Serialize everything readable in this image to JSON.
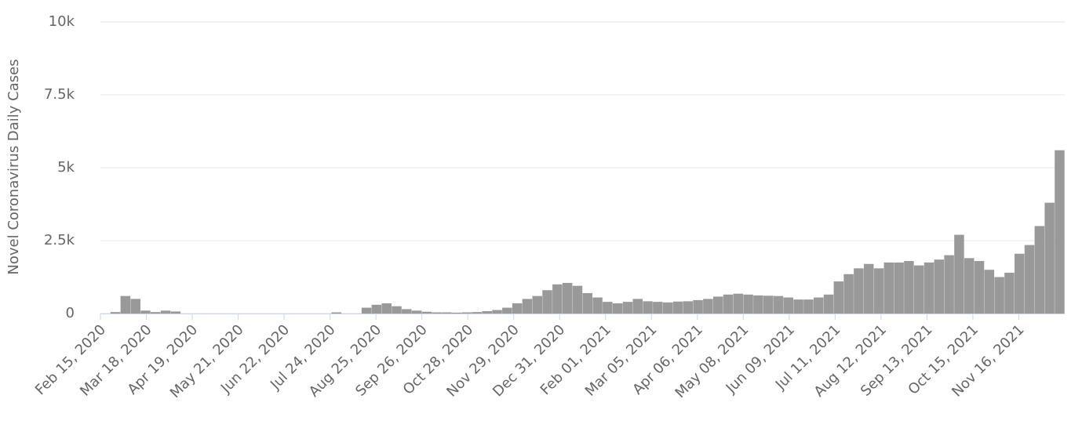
{
  "chart_data": {
    "type": "bar",
    "y_label": "Novel Coronavirus Daily Cases",
    "x": [
      "2020-02-15",
      "2020-02-22",
      "2020-02-29",
      "2020-03-07",
      "2020-03-14",
      "2020-03-21",
      "2020-03-28",
      "2020-04-04",
      "2020-04-11",
      "2020-04-18",
      "2020-04-25",
      "2020-05-02",
      "2020-05-09",
      "2020-05-16",
      "2020-05-23",
      "2020-05-30",
      "2020-06-06",
      "2020-06-13",
      "2020-06-20",
      "2020-06-27",
      "2020-07-04",
      "2020-07-11",
      "2020-07-18",
      "2020-07-25",
      "2020-08-01",
      "2020-08-08",
      "2020-08-15",
      "2020-08-22",
      "2020-08-29",
      "2020-09-05",
      "2020-09-12",
      "2020-09-19",
      "2020-09-26",
      "2020-10-03",
      "2020-10-10",
      "2020-10-17",
      "2020-10-24",
      "2020-10-31",
      "2020-11-07",
      "2020-11-14",
      "2020-11-21",
      "2020-11-28",
      "2020-12-05",
      "2020-12-12",
      "2020-12-19",
      "2020-12-26",
      "2021-01-02",
      "2021-01-09",
      "2021-01-16",
      "2021-01-23",
      "2021-01-30",
      "2021-02-06",
      "2021-02-13",
      "2021-02-20",
      "2021-02-27",
      "2021-03-06",
      "2021-03-13",
      "2021-03-20",
      "2021-03-27",
      "2021-04-03",
      "2021-04-10",
      "2021-04-17",
      "2021-04-24",
      "2021-05-01",
      "2021-05-08",
      "2021-05-15",
      "2021-05-22",
      "2021-05-29",
      "2021-06-05",
      "2021-06-12",
      "2021-06-19",
      "2021-06-26",
      "2021-07-03",
      "2021-07-10",
      "2021-07-17",
      "2021-07-24",
      "2021-07-31",
      "2021-08-07",
      "2021-08-14",
      "2021-08-21",
      "2021-08-28",
      "2021-09-04",
      "2021-09-11",
      "2021-09-18",
      "2021-09-25",
      "2021-10-02",
      "2021-10-09",
      "2021-10-16",
      "2021-10-23",
      "2021-10-30",
      "2021-11-06",
      "2021-11-13",
      "2021-11-20",
      "2021-11-27",
      "2021-12-04",
      "2021-12-11"
    ],
    "values": [
      0,
      50,
      600,
      500,
      100,
      50,
      100,
      70,
      0,
      0,
      0,
      0,
      0,
      0,
      0,
      0,
      0,
      0,
      0,
      0,
      0,
      0,
      0,
      40,
      0,
      0,
      200,
      300,
      350,
      250,
      150,
      100,
      60,
      40,
      40,
      30,
      40,
      50,
      80,
      120,
      200,
      350,
      500,
      600,
      800,
      1000,
      1050,
      950,
      700,
      550,
      400,
      350,
      400,
      500,
      420,
      400,
      380,
      410,
      420,
      460,
      500,
      580,
      650,
      680,
      650,
      620,
      610,
      600,
      550,
      480,
      480,
      550,
      650,
      1100,
      1350,
      1550,
      1700,
      1550,
      1750,
      1750,
      1800,
      1650,
      1750,
      1850,
      2000,
      2700,
      1900,
      1800,
      1500,
      1250,
      1400,
      2050,
      2350,
      3000,
      3800,
      5600
    ],
    "color": "#999999",
    "xlim": [
      "2020-02-15",
      "2021-12-18"
    ],
    "xticks": [
      {
        "value": "2020-02-15",
        "label": "Feb 15, 2020"
      },
      {
        "value": "2020-03-18",
        "label": "Mar 18, 2020"
      },
      {
        "value": "2020-04-19",
        "label": "Apr 19, 2020"
      },
      {
        "value": "2020-05-21",
        "label": "May 21, 2020"
      },
      {
        "value": "2020-06-22",
        "label": "Jun 22, 2020"
      },
      {
        "value": "2020-07-24",
        "label": "Jul 24, 2020"
      },
      {
        "value": "2020-08-25",
        "label": "Aug 25, 2020"
      },
      {
        "value": "2020-09-26",
        "label": "Sep 26, 2020"
      },
      {
        "value": "2020-10-28",
        "label": "Oct 28, 2020"
      },
      {
        "value": "2020-11-29",
        "label": "Nov 29, 2020"
      },
      {
        "value": "2020-12-31",
        "label": "Dec 31, 2020"
      },
      {
        "value": "2021-02-01",
        "label": "Feb 01, 2021"
      },
      {
        "value": "2021-03-05",
        "label": "Mar 05, 2021"
      },
      {
        "value": "2021-04-06",
        "label": "Apr 06, 2021"
      },
      {
        "value": "2021-05-08",
        "label": "May 08, 2021"
      },
      {
        "value": "2021-06-09",
        "label": "Jun 09, 2021"
      },
      {
        "value": "2021-07-11",
        "label": "Jul 11, 2021"
      },
      {
        "value": "2021-08-12",
        "label": "Aug 12, 2021"
      },
      {
        "value": "2021-09-13",
        "label": "Sep 13, 2021"
      },
      {
        "value": "2021-10-15",
        "label": "Oct 15, 2021"
      },
      {
        "value": "2021-11-16",
        "label": "Nov 16, 2021"
      }
    ],
    "ylim": [
      0,
      10000
    ],
    "yticks": [
      0,
      {
        "value": 2500,
        "label": "2.5k"
      },
      {
        "value": 5000,
        "label": "5k"
      },
      {
        "value": 7500,
        "label": "7.5k"
      },
      {
        "value": 10000,
        "label": "10k"
      }
    ],
    "grid": true
  }
}
